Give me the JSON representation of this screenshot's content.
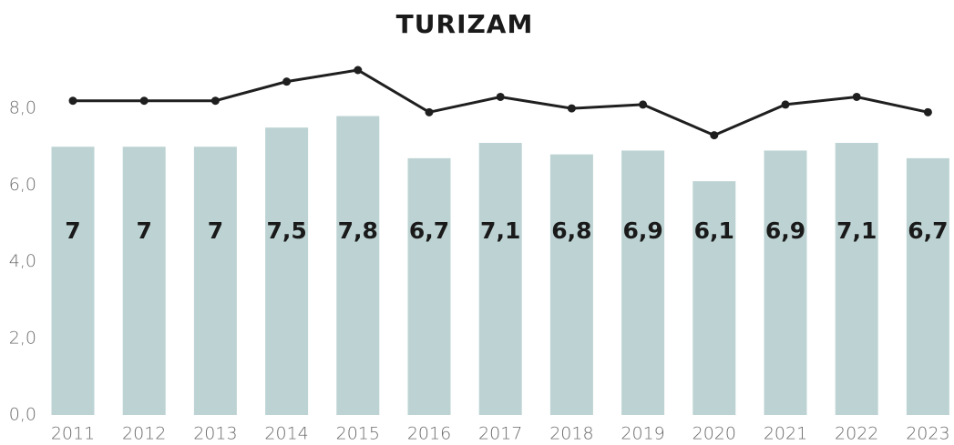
{
  "chart_data": {
    "type": "combo",
    "title": "TURIZAM",
    "categories": [
      "2011",
      "2012",
      "2013",
      "2014",
      "2015",
      "2016",
      "2017",
      "2018",
      "2019",
      "2020",
      "2021",
      "2022",
      "2023"
    ],
    "series": [
      {
        "type": "bar",
        "color": "#bdd3d3",
        "values": [
          7,
          7,
          7,
          7.5,
          7.8,
          6.7,
          7.1,
          6.8,
          6.9,
          6.1,
          6.9,
          7.1,
          6.7
        ],
        "value_labels": [
          "7",
          "7",
          "7",
          "7,5",
          "7,8",
          "6,7",
          "7,1",
          "6,8",
          "6,9",
          "6,1",
          "6,9",
          "7,1",
          "6,7"
        ]
      },
      {
        "type": "line",
        "color": "#1f1f1f",
        "values": [
          8.2,
          8.2,
          8.2,
          8.7,
          9.0,
          7.9,
          8.3,
          8.0,
          8.1,
          7.3,
          8.1,
          8.3,
          7.9
        ]
      }
    ],
    "ylim": [
      0,
      9
    ],
    "yticks": [
      {
        "value": 0,
        "label": "0,0"
      },
      {
        "value": 2,
        "label": "2,0"
      },
      {
        "value": 4,
        "label": "4,0"
      },
      {
        "value": 6,
        "label": "6,0"
      },
      {
        "value": 8,
        "label": "8,0"
      }
    ]
  }
}
